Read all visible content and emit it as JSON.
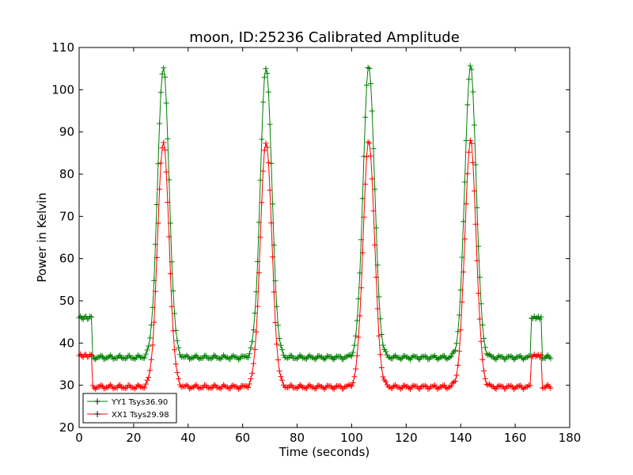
{
  "chart_data": {
    "type": "line",
    "title": "moon, ID:25236 Calibrated Amplitude",
    "xlabel": "Time (seconds)",
    "ylabel": "Power in Kelvin",
    "xlim": [
      0,
      180
    ],
    "ylim": [
      20,
      110
    ],
    "xticks": [
      0,
      20,
      40,
      60,
      80,
      100,
      120,
      140,
      160,
      180
    ],
    "yticks": [
      20,
      30,
      40,
      50,
      60,
      70,
      80,
      90,
      100,
      110
    ],
    "grid": false,
    "legend_position": "lower-left",
    "marker": "+",
    "series": [
      {
        "name": "YY1 Tsys36.90",
        "color": "#008000",
        "baseline": 36.6,
        "peak": 105.5,
        "pre_start_level": 46.0,
        "tail_level": 46.0,
        "drop_time": 4.6,
        "tail_start": 165.8,
        "tail_end": 169.8,
        "peak_times": [
          30.9,
          68.6,
          106.3,
          143.6
        ],
        "peak_width_sigma": 2.1,
        "x_range": [
          0,
          173
        ]
      },
      {
        "name": "XX1 Tsys29.98",
        "color": "#ff0000",
        "baseline": 29.6,
        "peak": 87.8,
        "pre_start_level": 37.0,
        "tail_level": 37.0,
        "drop_time": 4.6,
        "tail_start": 165.8,
        "tail_end": 169.8,
        "peak_times": [
          30.9,
          68.6,
          106.3,
          143.6
        ],
        "peak_width_sigma": 2.1,
        "x_range": [
          0,
          173
        ]
      }
    ]
  }
}
